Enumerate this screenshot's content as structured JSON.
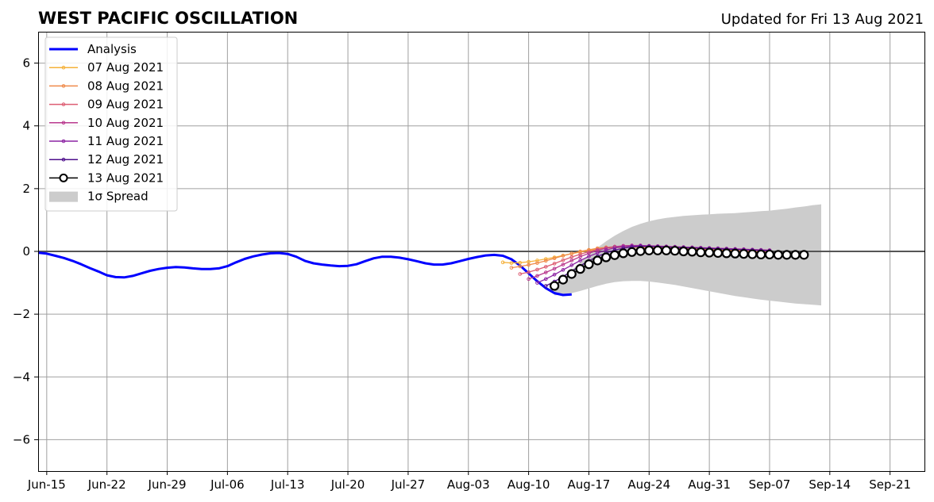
{
  "chart_data": {
    "type": "line",
    "title": "WEST PACIFIC OSCILLATION",
    "subtitle": "Updated for Fri 13 Aug 2021",
    "xlabel": "",
    "ylabel": "",
    "x_axis": {
      "type": "date",
      "min": "2021-06-14",
      "max": "2021-09-25",
      "ticks": [
        "2021-06-15",
        "2021-06-22",
        "2021-06-29",
        "2021-07-06",
        "2021-07-13",
        "2021-07-20",
        "2021-07-27",
        "2021-08-03",
        "2021-08-10",
        "2021-08-17",
        "2021-08-24",
        "2021-08-31",
        "2021-09-07",
        "2021-09-14",
        "2021-09-21"
      ],
      "tick_labels": [
        "Jun-15",
        "Jun-22",
        "Jun-29",
        "Jul-06",
        "Jul-13",
        "Jul-20",
        "Jul-27",
        "Aug-03",
        "Aug-10",
        "Aug-17",
        "Aug-24",
        "Aug-31",
        "Sep-07",
        "Sep-14",
        "Sep-21"
      ]
    },
    "y_axis": {
      "min": -7,
      "max": 7,
      "ticks": [
        -6,
        -4,
        -2,
        0,
        2,
        4,
        6
      ],
      "tick_labels": [
        "−6",
        "−4",
        "−2",
        "0",
        "2",
        "4",
        "6"
      ]
    },
    "grid": true,
    "legend_position": "top-left",
    "analysis": {
      "name": "Analysis",
      "color": "#0000ff",
      "start": "2021-06-14",
      "values": [
        -0.04,
        -0.07,
        -0.14,
        -0.21,
        -0.3,
        -0.41,
        -0.53,
        -0.64,
        -0.76,
        -0.82,
        -0.83,
        -0.78,
        -0.7,
        -0.62,
        -0.56,
        -0.52,
        -0.5,
        -0.51,
        -0.54,
        -0.56,
        -0.56,
        -0.54,
        -0.47,
        -0.35,
        -0.24,
        -0.16,
        -0.1,
        -0.06,
        -0.05,
        -0.08,
        -0.17,
        -0.3,
        -0.38,
        -0.42,
        -0.45,
        -0.47,
        -0.46,
        -0.41,
        -0.31,
        -0.22,
        -0.17,
        -0.17,
        -0.2,
        -0.25,
        -0.31,
        -0.38,
        -0.42,
        -0.42,
        -0.38,
        -0.31,
        -0.24,
        -0.18,
        -0.13,
        -0.11,
        -0.14,
        -0.25,
        -0.45,
        -0.7,
        -0.95,
        -1.17,
        -1.33,
        -1.39,
        -1.37
      ]
    },
    "forecasts": [
      {
        "name": "07 Aug 2021",
        "color": "#f5b13a",
        "start": "2021-08-07",
        "values": [
          -0.35,
          -0.37,
          -0.36,
          -0.33,
          -0.29,
          -0.24,
          -0.19,
          -0.13,
          -0.07,
          -0.02,
          0.03,
          0.07,
          0.1,
          0.12,
          0.13,
          0.13,
          0.13,
          0.12,
          0.11,
          0.1,
          0.09,
          0.08,
          0.07,
          0.06,
          0.05,
          0.04,
          0.03,
          0.02,
          0.01,
          0.0,
          -0.01,
          -0.02
        ]
      },
      {
        "name": "08 Aug 2021",
        "color": "#ef8a4a",
        "start": "2021-08-08",
        "values": [
          -0.52,
          -0.48,
          -0.43,
          -0.37,
          -0.3,
          -0.22,
          -0.14,
          -0.07,
          0.0,
          0.05,
          0.1,
          0.13,
          0.15,
          0.16,
          0.16,
          0.15,
          0.14,
          0.13,
          0.12,
          0.11,
          0.1,
          0.09,
          0.08,
          0.07,
          0.06,
          0.05,
          0.04,
          0.03,
          0.02,
          0.01,
          0.0
        ]
      },
      {
        "name": "09 Aug 2021",
        "color": "#dd5e73",
        "start": "2021-08-09",
        "values": [
          -0.72,
          -0.66,
          -0.58,
          -0.49,
          -0.39,
          -0.28,
          -0.18,
          -0.09,
          -0.01,
          0.06,
          0.11,
          0.15,
          0.17,
          0.18,
          0.17,
          0.16,
          0.15,
          0.14,
          0.13,
          0.12,
          0.11,
          0.1,
          0.09,
          0.08,
          0.07,
          0.06,
          0.05,
          0.04,
          0.03,
          0.02
        ]
      },
      {
        "name": "10 Aug 2021",
        "color": "#b9398e",
        "start": "2021-08-10",
        "values": [
          -0.88,
          -0.78,
          -0.67,
          -0.55,
          -0.42,
          -0.29,
          -0.17,
          -0.06,
          0.03,
          0.1,
          0.15,
          0.18,
          0.19,
          0.19,
          0.18,
          0.17,
          0.16,
          0.15,
          0.14,
          0.13,
          0.12,
          0.11,
          0.1,
          0.09,
          0.08,
          0.07,
          0.06,
          0.05,
          0.04
        ]
      },
      {
        "name": "11 Aug 2021",
        "color": "#8c23a3",
        "start": "2021-08-11",
        "values": [
          -1.0,
          -0.88,
          -0.74,
          -0.59,
          -0.44,
          -0.29,
          -0.16,
          -0.05,
          0.04,
          0.11,
          0.15,
          0.17,
          0.18,
          0.17,
          0.16,
          0.15,
          0.14,
          0.13,
          0.12,
          0.11,
          0.1,
          0.09,
          0.08,
          0.07,
          0.06,
          0.05,
          0.04,
          0.03
        ]
      },
      {
        "name": "12 Aug 2021",
        "color": "#4e0f8c",
        "start": "2021-08-12",
        "values": [
          -1.1,
          -0.96,
          -0.8,
          -0.63,
          -0.46,
          -0.3,
          -0.16,
          -0.05,
          0.04,
          0.1,
          0.14,
          0.16,
          0.16,
          0.15,
          0.14,
          0.13,
          0.12,
          0.11,
          0.1,
          0.09,
          0.08,
          0.07,
          0.06,
          0.05,
          0.04,
          0.03,
          0.02
        ]
      },
      {
        "name": "13 Aug 2021",
        "color": "#000000",
        "start": "2021-08-13",
        "markers": "circle",
        "values": [
          -1.1,
          -0.9,
          -0.72,
          -0.56,
          -0.41,
          -0.29,
          -0.19,
          -0.12,
          -0.06,
          -0.02,
          0.01,
          0.03,
          0.03,
          0.03,
          0.02,
          0.0,
          -0.01,
          -0.03,
          -0.04,
          -0.05,
          -0.06,
          -0.07,
          -0.08,
          -0.09,
          -0.1,
          -0.1,
          -0.11,
          -0.11,
          -0.11,
          -0.11
        ]
      }
    ],
    "spread": {
      "name": "1σ Spread",
      "color": "#cccccc",
      "start": "2021-08-13",
      "upper": [
        -1.05,
        -0.85,
        -0.6,
        -0.35,
        -0.1,
        0.12,
        0.32,
        0.5,
        0.65,
        0.78,
        0.88,
        0.96,
        1.02,
        1.07,
        1.1,
        1.13,
        1.15,
        1.17,
        1.18,
        1.2,
        1.21,
        1.22,
        1.24,
        1.26,
        1.28,
        1.3,
        1.33,
        1.36,
        1.4,
        1.43,
        1.47,
        1.5
      ],
      "lower": [
        -1.4,
        -1.38,
        -1.33,
        -1.26,
        -1.18,
        -1.1,
        -1.03,
        -0.98,
        -0.95,
        -0.94,
        -0.94,
        -0.96,
        -0.99,
        -1.03,
        -1.07,
        -1.12,
        -1.17,
        -1.22,
        -1.27,
        -1.32,
        -1.37,
        -1.42,
        -1.46,
        -1.5,
        -1.54,
        -1.57,
        -1.6,
        -1.63,
        -1.66,
        -1.68,
        -1.7,
        -1.72
      ]
    },
    "legend": [
      "Analysis",
      "07 Aug 2021",
      "08 Aug 2021",
      "09 Aug 2021",
      "10 Aug 2021",
      "11 Aug 2021",
      "12 Aug 2021",
      "13 Aug 2021",
      "1σ Spread"
    ]
  }
}
